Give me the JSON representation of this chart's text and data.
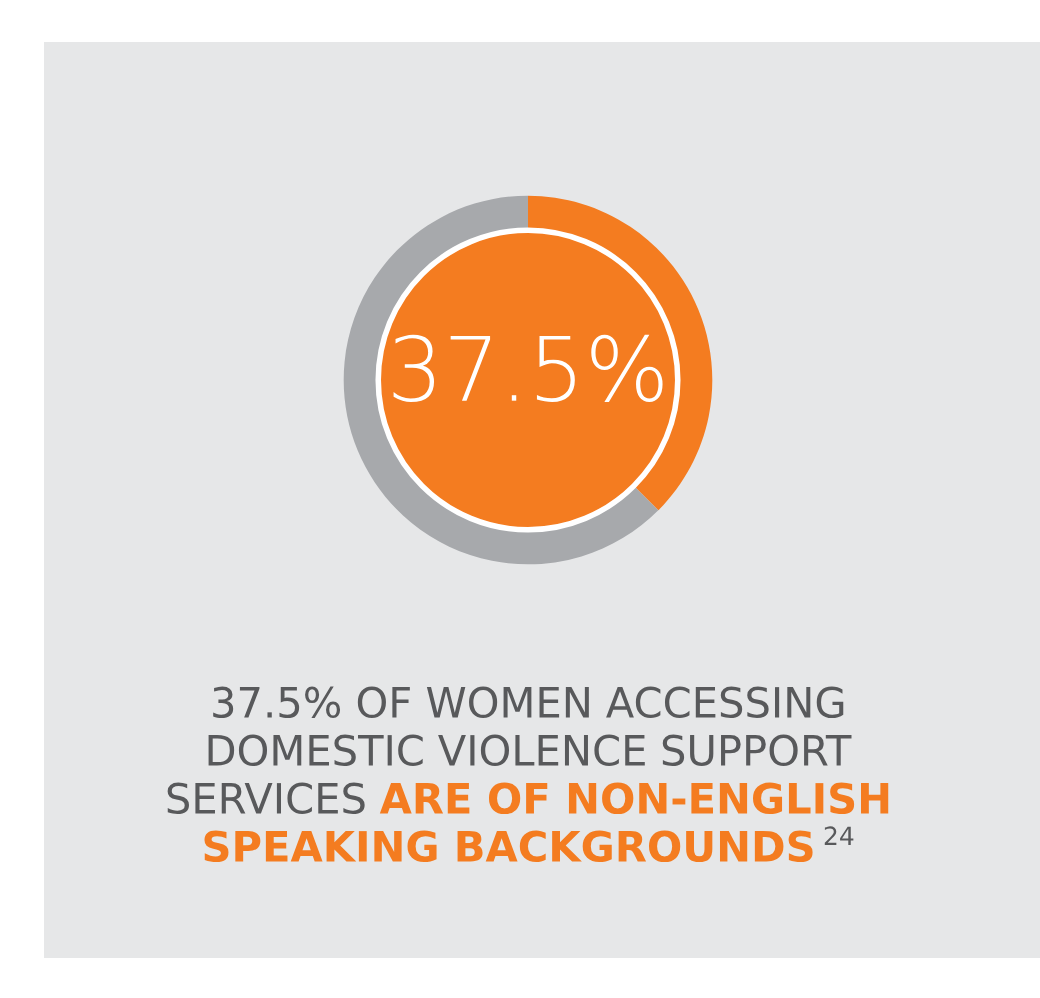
{
  "chart_data": {
    "type": "donut",
    "categories": [
      null,
      null
    ],
    "values": [
      37.5,
      62.5
    ],
    "colors": [
      "#f47c20",
      "#a7a9ac"
    ],
    "value_labels": [
      "37.5%",
      null
    ],
    "title": "37.5% OF WOMEN ACCESSING DOMESTIC VIOLENCE SUPPORT SERVICES",
    "annotations": [
      "ARE OF NON-ENGLISH SPEAKING BACKGROUNDS",
      "24"
    ]
  }
}
